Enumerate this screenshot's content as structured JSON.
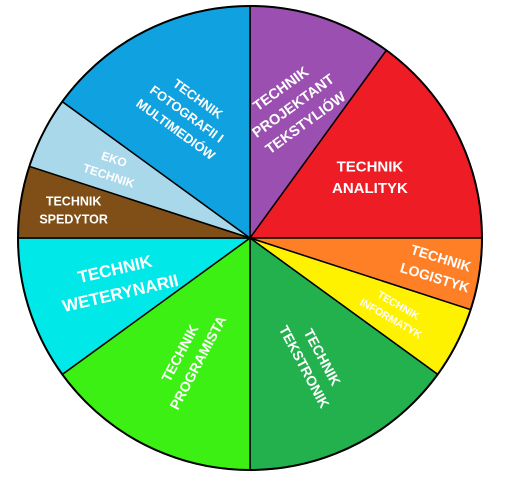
{
  "wheel": {
    "outline_color": "#000000",
    "segments": [
      {
        "id": "technik-projektant-tekstyliow",
        "lines": [
          "TECHNIK",
          "PROJEKTANT",
          "TEKSTYLIÓW"
        ],
        "color": "#9b4fb0",
        "text_color": "#ffffff",
        "start": 0,
        "end": 36,
        "label_r": 0.6,
        "rot": -36,
        "size": 14.5
      },
      {
        "id": "technik-analityk",
        "lines": [
          "TECHNIK",
          "ANALITYK"
        ],
        "color": "#ee1c25",
        "text_color": "#ffffff",
        "start": 36,
        "end": 90,
        "label_r": 0.58,
        "rot": 0,
        "size": 15
      },
      {
        "id": "technik-logistyk",
        "lines": [
          "TECHNIK",
          "LOGISTYK"
        ],
        "color": "#ff7f27",
        "text_color": "#ffffff",
        "start": 90,
        "end": 108,
        "label_r": 0.82,
        "rot": 17,
        "size": 14
      },
      {
        "id": "technik-informatyk",
        "lines": [
          "TECHNIK",
          "INFORMATYK"
        ],
        "color": "#fff200",
        "text_color": "#ffffff",
        "start": 108,
        "end": 126,
        "label_r": 0.7,
        "rot": 30,
        "size": 10.5
      },
      {
        "id": "technik-tekstronik",
        "lines": [
          "TECHNIK",
          "TEKSTRONIK"
        ],
        "color": "#22b14c",
        "text_color": "#ffffff",
        "start": 126,
        "end": 180,
        "label_r": 0.6,
        "rot": 62,
        "size": 14
      },
      {
        "id": "technik-programista",
        "lines": [
          "TECHNIK",
          "PROGRAMISTA"
        ],
        "color": "#3cf014",
        "text_color": "#ffffff",
        "start": 180,
        "end": 234,
        "label_r": 0.58,
        "rot": -62,
        "size": 14
      },
      {
        "id": "technik-weterynarii",
        "lines": [
          "TECHNIK",
          "WETERYNARII"
        ],
        "color": "#00e8e8",
        "text_color": "#ffffff",
        "start": 234,
        "end": 270,
        "label_r": 0.6,
        "rot": -13,
        "size": 17
      },
      {
        "id": "technik-spedytor",
        "lines": [
          "TECHNIK",
          "SPEDYTOR"
        ],
        "color": "#7f4f17",
        "text_color": "#ffffff",
        "start": 270,
        "end": 288,
        "label_r": 0.77,
        "rot": 0,
        "size": 12.5
      },
      {
        "id": "eko-technik",
        "lines": [
          "EKO",
          "TECHNIK"
        ],
        "color": "#a8d8ea",
        "text_color": "#ffffff",
        "start": 288,
        "end": 306,
        "label_r": 0.67,
        "rot": 18,
        "size": 12
      },
      {
        "id": "technik-fotografii-i-multimediow",
        "lines": [
          "TECHNIK",
          "FOTOGRAFII I",
          "MULTIMEDIÓW"
        ],
        "color": "#0fa1e0",
        "text_color": "#ffffff",
        "start": 306,
        "end": 360,
        "label_r": 0.6,
        "rot": 36,
        "size": 13
      }
    ]
  }
}
